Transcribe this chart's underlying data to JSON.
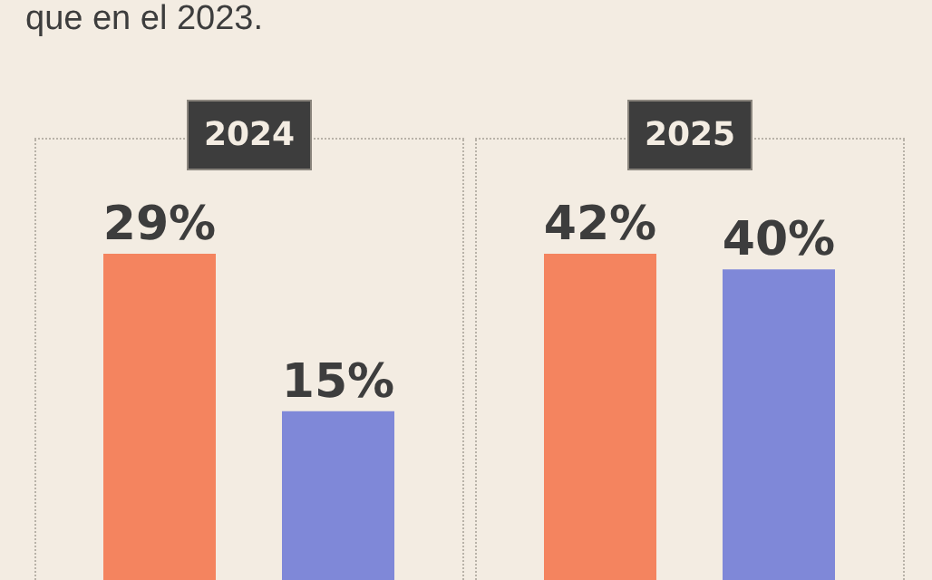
{
  "chart_data": [
    {
      "type": "bar",
      "title": "2024",
      "annotations": [
        "que en el 2023."
      ],
      "categories": [
        null,
        null
      ],
      "values": [
        29,
        15
      ],
      "value_labels": [
        "29%",
        "15%"
      ],
      "colors": [
        "#f4845f",
        "#7f88d8"
      ]
    },
    {
      "type": "bar",
      "title": "2025",
      "categories": [
        null,
        null
      ],
      "values": [
        42,
        40
      ],
      "value_labels": [
        "42%",
        "40%"
      ],
      "colors": [
        "#f4845f",
        "#7f88d8"
      ]
    }
  ]
}
